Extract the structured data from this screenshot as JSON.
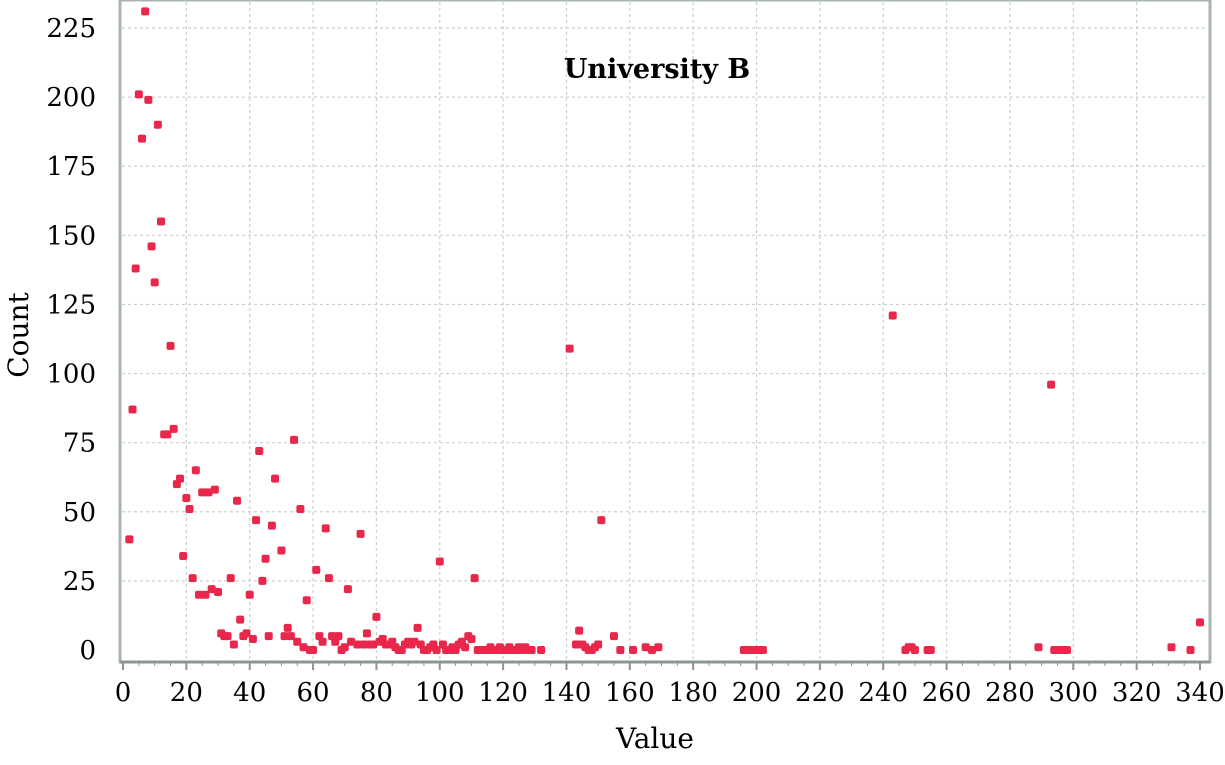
{
  "chart_data": {
    "type": "scatter",
    "title": "University B",
    "xlabel": "Value",
    "ylabel": "Count",
    "xlim": [
      0,
      340
    ],
    "ylim": [
      0,
      225
    ],
    "xticks": [
      "0",
      "20",
      "40",
      "60",
      "80",
      "100",
      "120",
      "140",
      "160",
      "180",
      "200",
      "220",
      "240",
      "260",
      "280",
      "300",
      "320",
      "340"
    ],
    "yticks": [
      "0",
      "25",
      "50",
      "75",
      "100",
      "125",
      "150",
      "175",
      "200",
      "225"
    ],
    "grid": true,
    "colors": {
      "point": "#e8274a",
      "grid": "#c8d2cc",
      "frame": "#a8b4ac",
      "axis": "#8a968e"
    },
    "series": [
      {
        "points": [
          [
            2,
            40
          ],
          [
            3,
            87
          ],
          [
            4,
            138
          ],
          [
            5,
            201
          ],
          [
            6,
            185
          ],
          [
            7,
            231
          ],
          [
            8,
            199
          ],
          [
            9,
            146
          ],
          [
            10,
            133
          ],
          [
            11,
            190
          ],
          [
            12,
            155
          ],
          [
            13,
            78
          ],
          [
            14,
            78
          ],
          [
            15,
            110
          ],
          [
            16,
            80
          ],
          [
            17,
            60
          ],
          [
            18,
            62
          ],
          [
            19,
            34
          ],
          [
            20,
            55
          ],
          [
            21,
            51
          ],
          [
            22,
            26
          ],
          [
            23,
            65
          ],
          [
            24,
            20
          ],
          [
            25,
            57
          ],
          [
            26,
            20
          ],
          [
            27,
            57
          ],
          [
            28,
            22
          ],
          [
            29,
            58
          ],
          [
            30,
            21
          ],
          [
            31,
            6
          ],
          [
            32,
            5
          ],
          [
            33,
            5
          ],
          [
            34,
            26
          ],
          [
            35,
            2
          ],
          [
            36,
            54
          ],
          [
            37,
            11
          ],
          [
            38,
            5
          ],
          [
            39,
            6
          ],
          [
            40,
            20
          ],
          [
            41,
            4
          ],
          [
            42,
            47
          ],
          [
            43,
            72
          ],
          [
            44,
            25
          ],
          [
            45,
            33
          ],
          [
            46,
            5
          ],
          [
            47,
            45
          ],
          [
            48,
            62
          ],
          [
            50,
            36
          ],
          [
            51,
            5
          ],
          [
            52,
            8
          ],
          [
            53,
            5
          ],
          [
            54,
            76
          ],
          [
            55,
            3
          ],
          [
            56,
            51
          ],
          [
            57,
            1
          ],
          [
            58,
            18
          ],
          [
            59,
            0
          ],
          [
            60,
            0
          ],
          [
            61,
            29
          ],
          [
            62,
            5
          ],
          [
            63,
            3
          ],
          [
            64,
            44
          ],
          [
            65,
            26
          ],
          [
            66,
            5
          ],
          [
            67,
            3
          ],
          [
            68,
            5
          ],
          [
            69,
            0
          ],
          [
            70,
            1
          ],
          [
            71,
            22
          ],
          [
            72,
            3
          ],
          [
            74,
            2
          ],
          [
            75,
            42
          ],
          [
            76,
            2
          ],
          [
            77,
            6
          ],
          [
            78,
            2
          ],
          [
            79,
            2
          ],
          [
            80,
            12
          ],
          [
            81,
            3
          ],
          [
            82,
            4
          ],
          [
            83,
            2
          ],
          [
            84,
            2
          ],
          [
            85,
            3
          ],
          [
            86,
            1
          ],
          [
            87,
            0
          ],
          [
            88,
            0
          ],
          [
            89,
            2
          ],
          [
            90,
            3
          ],
          [
            91,
            2
          ],
          [
            92,
            3
          ],
          [
            93,
            8
          ],
          [
            94,
            2
          ],
          [
            95,
            0
          ],
          [
            96,
            0
          ],
          [
            97,
            1
          ],
          [
            98,
            2
          ],
          [
            99,
            0
          ],
          [
            100,
            32
          ],
          [
            101,
            2
          ],
          [
            102,
            0
          ],
          [
            103,
            0
          ],
          [
            104,
            1
          ],
          [
            105,
            0
          ],
          [
            106,
            2
          ],
          [
            107,
            3
          ],
          [
            108,
            1
          ],
          [
            109,
            5
          ],
          [
            110,
            4
          ],
          [
            111,
            26
          ],
          [
            112,
            0
          ],
          [
            113,
            0
          ],
          [
            114,
            0
          ],
          [
            115,
            0
          ],
          [
            116,
            1
          ],
          [
            117,
            0
          ],
          [
            118,
            0
          ],
          [
            119,
            1
          ],
          [
            120,
            0
          ],
          [
            121,
            0
          ],
          [
            122,
            1
          ],
          [
            123,
            0
          ],
          [
            124,
            0
          ],
          [
            125,
            1
          ],
          [
            126,
            0
          ],
          [
            127,
            1
          ],
          [
            128,
            0
          ],
          [
            129,
            0
          ],
          [
            132,
            0
          ],
          [
            141,
            109
          ],
          [
            143,
            2
          ],
          [
            144,
            7
          ],
          [
            145,
            2
          ],
          [
            146,
            1
          ],
          [
            147,
            0
          ],
          [
            148,
            0
          ],
          [
            149,
            1
          ],
          [
            150,
            2
          ],
          [
            151,
            47
          ],
          [
            155,
            5
          ],
          [
            157,
            0
          ],
          [
            161,
            0
          ],
          [
            165,
            1
          ],
          [
            167,
            0
          ],
          [
            169,
            1
          ],
          [
            196,
            0
          ],
          [
            198,
            0
          ],
          [
            199,
            0
          ],
          [
            200,
            0
          ],
          [
            201,
            0
          ],
          [
            202,
            0
          ],
          [
            243,
            121
          ],
          [
            247,
            0
          ],
          [
            248,
            1
          ],
          [
            249,
            1
          ],
          [
            250,
            0
          ],
          [
            254,
            0
          ],
          [
            255,
            0
          ],
          [
            289,
            1
          ],
          [
            293,
            96
          ],
          [
            294,
            0
          ],
          [
            295,
            0
          ],
          [
            296,
            0
          ],
          [
            297,
            0
          ],
          [
            298,
            0
          ],
          [
            331,
            1
          ],
          [
            337,
            0
          ],
          [
            340,
            10
          ]
        ]
      }
    ]
  }
}
